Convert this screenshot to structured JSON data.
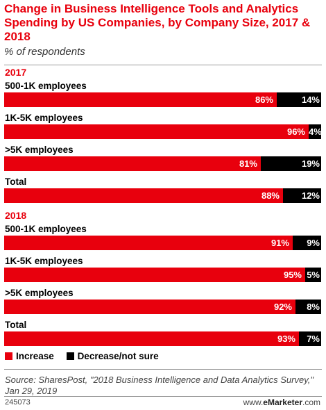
{
  "colors": {
    "increase": "#e8000d",
    "decrease": "#000000",
    "accent": "#e8000d"
  },
  "chart_data": {
    "type": "bar",
    "orientation": "horizontal",
    "stacked": true,
    "title": "Change in Business Intelligence Tools and Analytics Spending by US Companies, by Company Size, 2017 & 2018",
    "subtitle": "% of respondents",
    "unit": "%",
    "xlim": [
      0,
      100
    ],
    "legend_position": "bottom-left",
    "series_names": [
      "Increase",
      "Decrease/not sure"
    ],
    "groups": [
      {
        "label": "2017",
        "rows": [
          {
            "category": "500-1K employees",
            "increase": 86,
            "decrease": 14
          },
          {
            "category": "1K-5K employees",
            "increase": 96,
            "decrease": 4
          },
          {
            "category": ">5K employees",
            "increase": 81,
            "decrease": 19
          },
          {
            "category": "Total",
            "increase": 88,
            "decrease": 12
          }
        ]
      },
      {
        "label": "2018",
        "rows": [
          {
            "category": "500-1K employees",
            "increase": 91,
            "decrease": 9
          },
          {
            "category": "1K-5K employees",
            "increase": 95,
            "decrease": 5
          },
          {
            "category": ">5K employees",
            "increase": 92,
            "decrease": 8
          },
          {
            "category": "Total",
            "increase": 93,
            "decrease": 7
          }
        ]
      }
    ]
  },
  "legend": {
    "increase_label": "Increase",
    "decrease_label": "Decrease/not sure"
  },
  "footer": {
    "source": "Source: SharesPost, \"2018 Business Intelligence and Data Analytics Survey,\" Jan 29, 2019",
    "chart_id": "245073",
    "brand_prefix": "www.",
    "brand_name": "eMarketer",
    "brand_suffix": ".com"
  }
}
